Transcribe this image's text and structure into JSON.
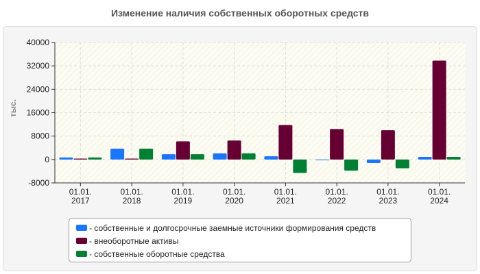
{
  "chart_data": {
    "type": "bar",
    "title": "Изменение наличия собственных оборотных средств",
    "ylabel": "тыс.",
    "ylim": [
      -8000,
      40000
    ],
    "yticks": [
      40000,
      32000,
      24000,
      16000,
      8000,
      0,
      -8000
    ],
    "categories": [
      [
        "01.01.",
        "2017"
      ],
      [
        "01.01.",
        "2018"
      ],
      [
        "01.01.",
        "2019"
      ],
      [
        "01.01.",
        "2020"
      ],
      [
        "01.01.",
        "2021"
      ],
      [
        "01.01.",
        "2022"
      ],
      [
        "01.01.",
        "2023"
      ],
      [
        "01.01.",
        "2024"
      ]
    ],
    "series": [
      {
        "name": "- собственные и долгосрочные заемные источники формирования средств",
        "color": "#1a75ff",
        "values": [
          700,
          3700,
          1800,
          2100,
          1100,
          -200,
          -1200,
          900
        ]
      },
      {
        "name": "- внеоборотные активы",
        "color": "#660033",
        "values": [
          300,
          300,
          6200,
          6500,
          11800,
          10400,
          10000,
          33800
        ]
      },
      {
        "name": "- собственные оборотные средства",
        "color": "#008033",
        "values": [
          700,
          3700,
          1800,
          2100,
          -4600,
          -3800,
          -3000,
          900
        ]
      }
    ],
    "grid": true,
    "legend_position": "bottom"
  }
}
